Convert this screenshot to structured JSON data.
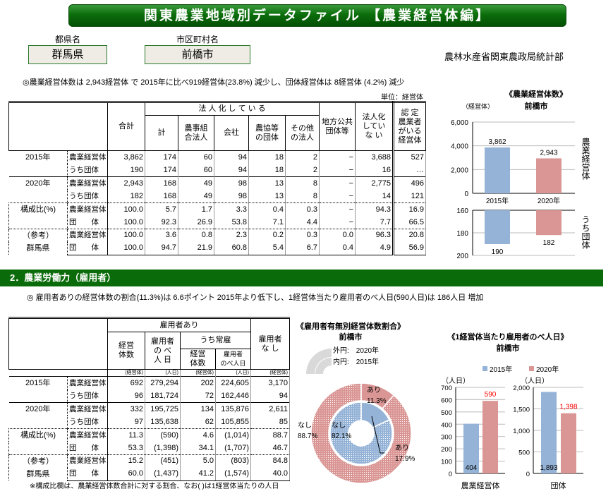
{
  "title": "関東農業地域別データファイル 【農業経営体編】",
  "prefecture": {
    "label": "都県名",
    "value": "群馬県"
  },
  "municipality": {
    "label": "市区町村名",
    "value": "前橋市"
  },
  "agency": "農林水産省関東農政局統計部",
  "section1": {
    "note": "◎農業経営体数は 2,943経営体 で 2015年に比べ919経営体(23.8%) 減少し、団体経営体は 8経営体 (4.2%) 減少",
    "unit": "単位：経営体",
    "headers": {
      "total": "合計",
      "incorporated": "法 人 化 し て い る",
      "sub": [
        "計",
        "農事組\n合法人",
        "会社",
        "農協等\nの団体",
        "その他\nの法人"
      ],
      "local_gov": "地方公共\n団体等",
      "not_incorporated": "法人化\nしてい\nな い",
      "certified": "認 定\n農業者\nがいる\n経営体"
    },
    "rows": [
      {
        "group": "2015年",
        "label": "農業経営体",
        "values": [
          "3,862",
          "174",
          "60",
          "94",
          "18",
          "2",
          "−",
          "3,688",
          "527"
        ]
      },
      {
        "group": "",
        "label": "うち団体",
        "values": [
          "190",
          "174",
          "60",
          "94",
          "18",
          "2",
          "−",
          "16",
          "…"
        ]
      },
      {
        "group": "2020年",
        "label": "農業経営体",
        "values": [
          "2,943",
          "168",
          "49",
          "98",
          "13",
          "8",
          "−",
          "2,775",
          "496"
        ]
      },
      {
        "group": "",
        "label": "うち団体",
        "values": [
          "182",
          "168",
          "49",
          "98",
          "13",
          "8",
          "−",
          "14",
          "121"
        ]
      },
      {
        "group": "構成比(%)",
        "label": "農業経営体",
        "values": [
          "100.0",
          "5.7",
          "1.7",
          "3.3",
          "0.4",
          "0.3",
          "−",
          "94.3",
          "16.9"
        ]
      },
      {
        "group": "",
        "label": "団　　体",
        "values": [
          "100.0",
          "92.3",
          "26.9",
          "53.8",
          "7.1",
          "4.4",
          "−",
          "7.7",
          "66.5"
        ]
      },
      {
        "group": "（参考）",
        "label": "農業経営体",
        "values": [
          "100.0",
          "3.6",
          "0.8",
          "2.3",
          "0.2",
          "0.3",
          "0.0",
          "96.3",
          "20.8"
        ]
      },
      {
        "group": "群馬県",
        "label": "団　　体",
        "values": [
          "100.0",
          "94.7",
          "21.9",
          "60.8",
          "5.4",
          "6.7",
          "0.4",
          "4.9",
          "56.9"
        ]
      }
    ]
  },
  "section2": {
    "heading": "2．農業労働力（雇用者）",
    "note": "◎ 雇用者ありの経営体数の割合(11.3%)は 6.6ポイント 2015年より低下し、1経営体当たり雇用者のべ人日(590人日)は 186人日 増加",
    "headers": {
      "with": "雇用者あり",
      "count": "経営\n体数",
      "days": "雇用者\nの べ\n人 日",
      "regular": "うち常雇",
      "reg_count": "経営\n体数",
      "reg_days": "雇用者\nのべ人日",
      "without": "雇用者\nな し"
    },
    "units": [
      "(経営体)",
      "(人日)",
      "(経営体)",
      "(人日)",
      "(経営体)"
    ],
    "rows": [
      {
        "group": "2015年",
        "label": "農業経営体",
        "values": [
          "692",
          "279,294",
          "202",
          "224,605",
          "3,170"
        ]
      },
      {
        "group": "",
        "label": "うち団体",
        "values": [
          "96",
          "181,724",
          "72",
          "162,446",
          "94"
        ]
      },
      {
        "group": "2020年",
        "label": "農業経営体",
        "values": [
          "332",
          "195,725",
          "134",
          "135,876",
          "2,611"
        ]
      },
      {
        "group": "",
        "label": "うち団体",
        "values": [
          "97",
          "135,638",
          "62",
          "105,855",
          "85"
        ]
      },
      {
        "group": "構成比(%)",
        "label": "農業経営体",
        "values": [
          "11.3",
          "(590)",
          "4.6",
          "(1,014)",
          "88.7"
        ]
      },
      {
        "group": "",
        "label": "団　　体",
        "values": [
          "53.3",
          "(1,398)",
          "34.1",
          "(1,707)",
          "46.7"
        ]
      },
      {
        "group": "（参考）",
        "label": "農業経営体",
        "values": [
          "15.2",
          "(451)",
          "5.0",
          "(803)",
          "84.8"
        ]
      },
      {
        "group": "群馬県",
        "label": "団　　体",
        "values": [
          "60.0",
          "(1,437)",
          "41.2",
          "(1,574)",
          "40.0"
        ]
      }
    ],
    "footnote": "※構成比欄は、農業経営体数合計に対する割合、なお( )は1経営体当たりの人日"
  },
  "colors": {
    "green": "#0a6b0a",
    "blue": "#95b3d7",
    "red": "#da9694",
    "highlight": "#ff0000"
  },
  "chart_data": [
    {
      "type": "bar",
      "title": "《農業経営体数》",
      "subtitle": "前橋市",
      "ylabel": "（経営体）",
      "categories": [
        "2015年",
        "2020年"
      ],
      "panels": [
        {
          "label": "農業経営体",
          "values": [
            3862,
            2943
          ],
          "value_labels": [
            "3,862",
            "2,943"
          ],
          "ylim": [
            0,
            6000
          ],
          "ticks": [
            "0",
            "2,000",
            "4,000",
            "6,000"
          ],
          "tick_values": [
            0,
            2000,
            4000,
            6000
          ],
          "grid": true
        },
        {
          "label": "うち団体",
          "values": [
            190,
            182
          ],
          "value_labels": [
            "190",
            "182"
          ],
          "ylim": [
            160,
            200
          ],
          "inverted": true,
          "ticks": [
            "160",
            "180",
            "200"
          ],
          "tick_values": [
            160,
            180,
            200
          ],
          "grid": true
        }
      ]
    },
    {
      "type": "pie",
      "title": "《雇用者有無別経営体数割合》",
      "subtitle": "前橋市",
      "legend": {
        "outer": "外円:　2020年",
        "inner": "内円:　2015年"
      },
      "rings": [
        {
          "ring": "outer",
          "slices": [
            {
              "label": "あり",
              "value": 11.3,
              "text": "11.3%"
            },
            {
              "label": "なし",
              "value": 88.7,
              "text": "88.7%"
            }
          ]
        },
        {
          "ring": "inner",
          "slices": [
            {
              "label": "あり",
              "value": 17.9,
              "text": "17.9%"
            },
            {
              "label": "なし",
              "value": 82.1,
              "text": "82.1%"
            }
          ]
        }
      ]
    },
    {
      "type": "bar",
      "title": "《1経営体当たり雇用者のべ人日》",
      "subtitle": "前橋市",
      "legend": [
        "2015年",
        "2020年"
      ],
      "ylabel": "（人日）",
      "panels": [
        {
          "label": "農業経営体",
          "values": [
            404,
            590
          ],
          "value_labels": [
            "404",
            "590"
          ],
          "ylim": [
            0,
            700
          ],
          "tick_values": [
            0,
            100,
            200,
            300,
            400,
            500,
            600,
            700
          ],
          "ticks": [
            "0",
            "100",
            "200",
            "300",
            "400",
            "500",
            "600",
            "700"
          ],
          "grid": true
        },
        {
          "label": "団体",
          "values": [
            1893,
            1398
          ],
          "value_labels": [
            "1,893",
            "1,398"
          ],
          "ylim": [
            0,
            2000
          ],
          "tick_values": [
            0,
            500,
            1000,
            1500,
            2000
          ],
          "ticks": [
            "0",
            "500",
            "1,000",
            "1,500",
            "2,000"
          ],
          "grid": true
        }
      ]
    }
  ]
}
